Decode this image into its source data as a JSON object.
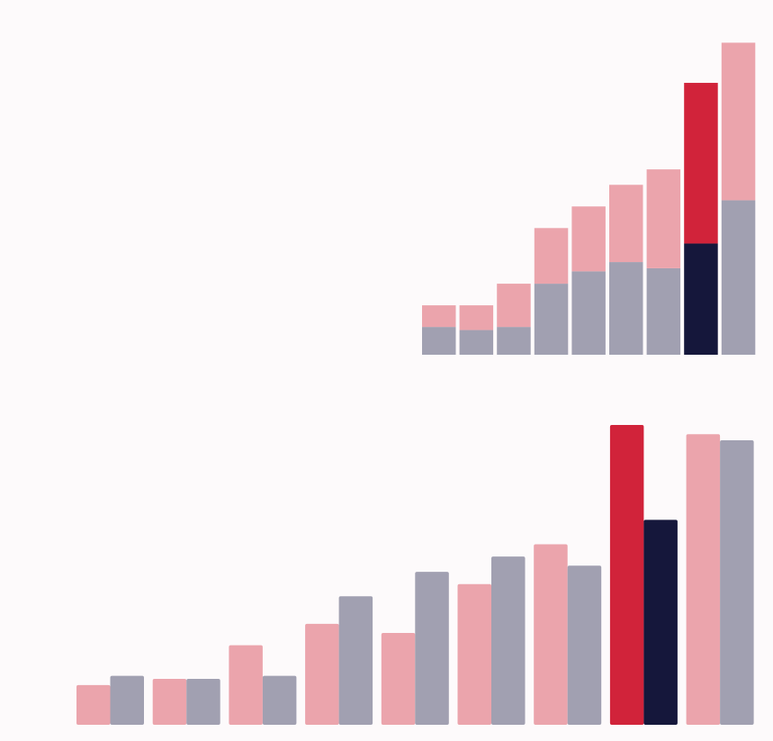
{
  "colors": {
    "background": "#fdfafb",
    "series_a": "#eba4ac",
    "series_b": "#a1a0b1",
    "highlight_a": "#d1233a",
    "highlight_b": "#15173b"
  },
  "chart_data": [
    {
      "type": "bar",
      "stacked": true,
      "title": "",
      "xlabel": "",
      "ylabel": "",
      "grid": false,
      "axes_visible": false,
      "highlight_index": 7,
      "series": [
        {
          "values": [
            9,
            8,
            9,
            23,
            27,
            30,
            28,
            36,
            50
          ]
        },
        {
          "values": [
            7,
            8,
            14,
            18,
            21,
            25,
            32,
            52,
            51
          ]
        }
      ],
      "ylim": [
        0,
        102
      ]
    },
    {
      "type": "bar",
      "stacked": false,
      "title": "",
      "xlabel": "",
      "ylabel": "",
      "grid": false,
      "axes_visible": false,
      "highlight_index": 7,
      "series": [
        {
          "values": [
            13,
            15,
            26,
            33,
            30,
            46,
            59,
            98,
            95
          ]
        },
        {
          "values": [
            16,
            15,
            16,
            42,
            50,
            55,
            52,
            67,
            93
          ]
        }
      ],
      "ylim": [
        0,
        98
      ]
    }
  ]
}
